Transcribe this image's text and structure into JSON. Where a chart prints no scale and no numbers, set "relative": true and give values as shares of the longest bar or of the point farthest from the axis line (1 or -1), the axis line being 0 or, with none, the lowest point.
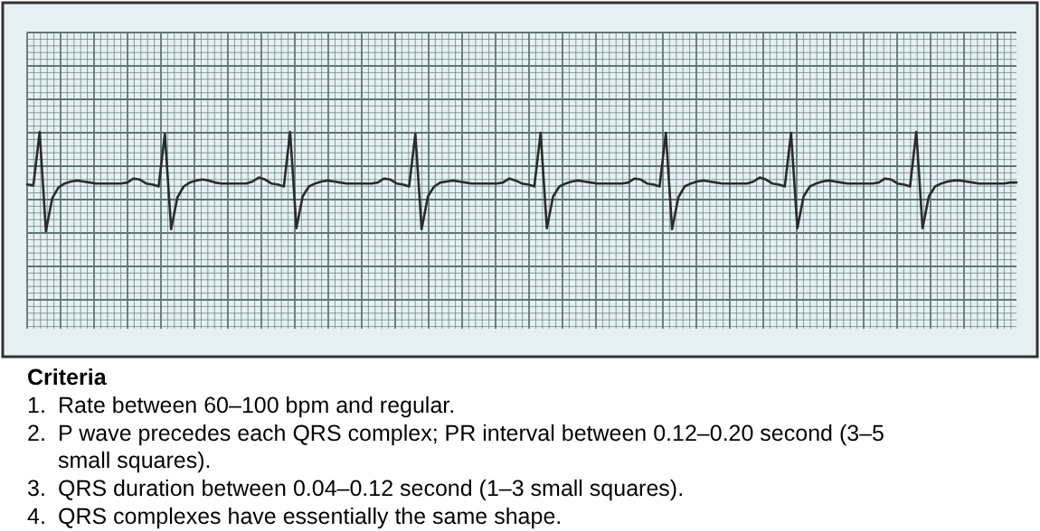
{
  "chart_data": {
    "type": "line",
    "relative": true,
    "grid": true,
    "categories": [
      null,
      null,
      null,
      null,
      null,
      null,
      null,
      null,
      null,
      null,
      null,
      null,
      null,
      null,
      null,
      null,
      null,
      null,
      null,
      null,
      null,
      null,
      null,
      null,
      null,
      null,
      null,
      null,
      null,
      null,
      null,
      null,
      null,
      null,
      null,
      null,
      null,
      null,
      null,
      null,
      null,
      null,
      null,
      null,
      null,
      null,
      null,
      null,
      null,
      null,
      null,
      null,
      null,
      null,
      null,
      null,
      null,
      null,
      null,
      null,
      null,
      null,
      null,
      null,
      null,
      null,
      null,
      null,
      null,
      null,
      null,
      null,
      null,
      null,
      null,
      null,
      null,
      null,
      null,
      null,
      null,
      null,
      null,
      null,
      null,
      null,
      null,
      null,
      null,
      null,
      null,
      null,
      null,
      null,
      null,
      null,
      null,
      null,
      null,
      null,
      null,
      null,
      null,
      null,
      null,
      null,
      null,
      null,
      null,
      null,
      null,
      null,
      null,
      null,
      null,
      null,
      null,
      null,
      null,
      null,
      null,
      null,
      null,
      null,
      null,
      null,
      null,
      null,
      null,
      null,
      null,
      null,
      null,
      null,
      null,
      null,
      null,
      null,
      null,
      null,
      null,
      null,
      null,
      null,
      null,
      null,
      null,
      null,
      null,
      null,
      null,
      null,
      null,
      null,
      null,
      null,
      null,
      null,
      null
    ],
    "series": [
      {
        "color": "#2b2b2b",
        "values": [
          0.47,
          0.46,
          1.0,
          0.0,
          0.33,
          0.44,
          0.48,
          0.5,
          0.51,
          0.5,
          0.49,
          0.48,
          0.48,
          0.48,
          0.48,
          0.48,
          0.49,
          0.53,
          0.52,
          0.48,
          0.47,
          0.45,
          0.98,
          0.02,
          0.34,
          0.45,
          0.49,
          0.51,
          0.52,
          0.51,
          0.49,
          0.48,
          0.48,
          0.48,
          0.48,
          0.48,
          0.5,
          0.54,
          0.52,
          0.48,
          0.47,
          0.45,
          1.0,
          0.03,
          0.35,
          0.45,
          0.48,
          0.5,
          0.51,
          0.5,
          0.49,
          0.48,
          0.48,
          0.48,
          0.48,
          0.48,
          0.49,
          0.53,
          0.52,
          0.48,
          0.47,
          0.45,
          0.98,
          0.02,
          0.35,
          0.45,
          0.49,
          0.5,
          0.51,
          0.5,
          0.49,
          0.48,
          0.48,
          0.48,
          0.48,
          0.48,
          0.49,
          0.53,
          0.51,
          0.48,
          0.47,
          0.45,
          0.99,
          0.03,
          0.35,
          0.45,
          0.48,
          0.5,
          0.51,
          0.5,
          0.49,
          0.48,
          0.48,
          0.48,
          0.48,
          0.48,
          0.49,
          0.53,
          0.52,
          0.48,
          0.47,
          0.45,
          0.99,
          0.02,
          0.34,
          0.45,
          0.48,
          0.5,
          0.51,
          0.5,
          0.49,
          0.48,
          0.48,
          0.48,
          0.48,
          0.48,
          0.5,
          0.54,
          0.52,
          0.48,
          0.47,
          0.45,
          0.99,
          0.03,
          0.35,
          0.45,
          0.48,
          0.5,
          0.51,
          0.5,
          0.49,
          0.48,
          0.48,
          0.48,
          0.48,
          0.48,
          0.49,
          0.53,
          0.52,
          0.48,
          0.47,
          0.45,
          1.0,
          0.03,
          0.35,
          0.45,
          0.48,
          0.5,
          0.51,
          0.51,
          0.5,
          0.49,
          0.48,
          0.48,
          0.48,
          0.48,
          0.48,
          0.49,
          0.49
        ]
      }
    ],
    "annotations": [
      "Criteria",
      "1. Rate between 60–100 bpm and regular.",
      "2. P wave precedes each QRS complex; PR interval between 0.12–0.20 second (3–5 small squares).",
      "3. QRS duration between 0.04–0.12 second (1–3 small squares).",
      "4. QRS complexes have essentially the same shape."
    ]
  }
}
